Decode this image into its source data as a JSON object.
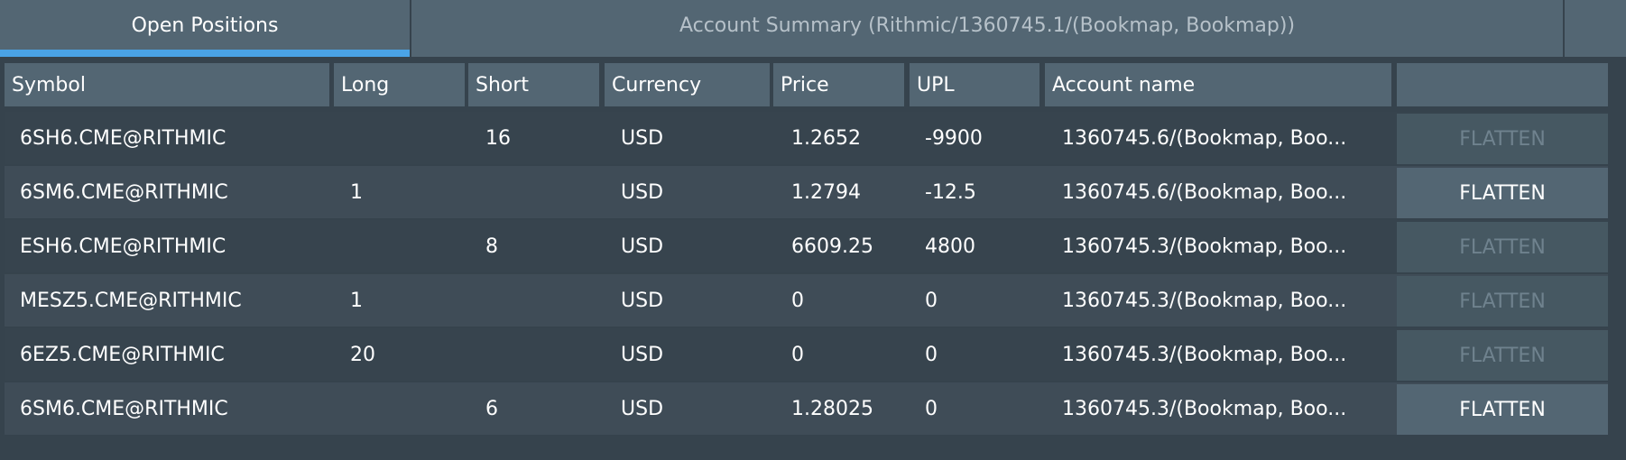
{
  "tabs": [
    {
      "label": "Open Positions",
      "active": true
    },
    {
      "label": "Account Summary (Rithmic/1360745.1/(Bookmap, Bookmap))",
      "active": false
    },
    {
      "label": "",
      "active": false
    }
  ],
  "colors": {
    "accent": "#4aa3e6",
    "background": "#36434d",
    "header": "#536673"
  },
  "table": {
    "columns": [
      "Symbol",
      "Long",
      "Short",
      "Currency",
      "Price",
      "UPL",
      "Account name",
      ""
    ],
    "rows": [
      {
        "symbol": "6SH6.CME@RITHMIC",
        "long": "",
        "short": "16",
        "currency": "USD",
        "price": "1.2652",
        "upl": "-9900",
        "account": "1360745.6/(Bookmap, Boo...",
        "action": "FLATTEN",
        "enabled": false
      },
      {
        "symbol": "6SM6.CME@RITHMIC",
        "long": "1",
        "short": "",
        "currency": "USD",
        "price": "1.2794",
        "upl": "-12.5",
        "account": "1360745.6/(Bookmap, Boo...",
        "action": "FLATTEN",
        "enabled": true
      },
      {
        "symbol": "ESH6.CME@RITHMIC",
        "long": "",
        "short": "8",
        "currency": "USD",
        "price": "6609.25",
        "upl": "4800",
        "account": "1360745.3/(Bookmap, Boo...",
        "action": "FLATTEN",
        "enabled": false
      },
      {
        "symbol": "MESZ5.CME@RITHMIC",
        "long": "1",
        "short": "",
        "currency": "USD",
        "price": "0",
        "upl": "0",
        "account": "1360745.3/(Bookmap, Boo...",
        "action": "FLATTEN",
        "enabled": false
      },
      {
        "symbol": "6EZ5.CME@RITHMIC",
        "long": "20",
        "short": "",
        "currency": "USD",
        "price": "0",
        "upl": "0",
        "account": "1360745.3/(Bookmap, Boo...",
        "action": "FLATTEN",
        "enabled": false
      },
      {
        "symbol": "6SM6.CME@RITHMIC",
        "long": "",
        "short": "6",
        "currency": "USD",
        "price": "1.28025",
        "upl": "0",
        "account": "1360745.3/(Bookmap, Boo...",
        "action": "FLATTEN",
        "enabled": true
      }
    ]
  }
}
